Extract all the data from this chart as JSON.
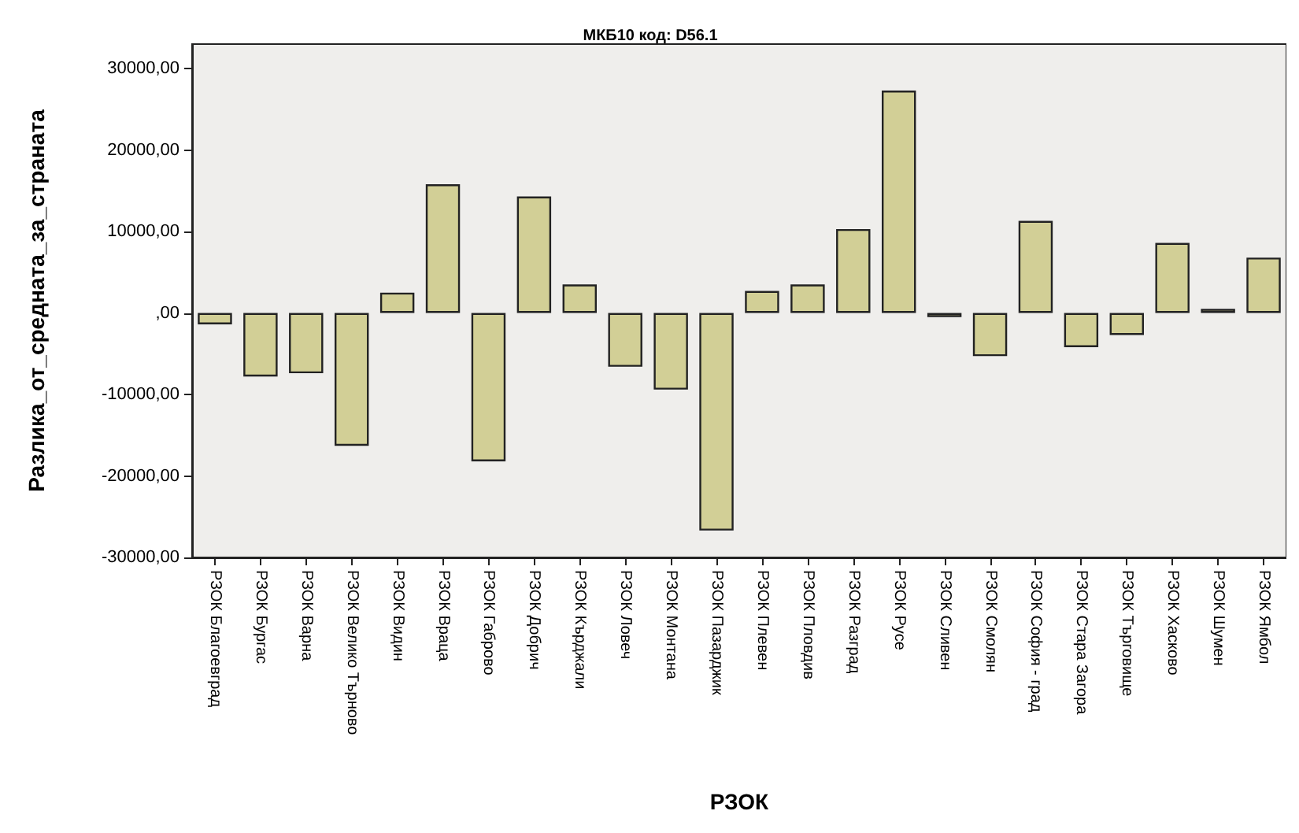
{
  "chart_data": {
    "type": "bar",
    "title": "МКБ10 код: D56.1",
    "xlabel": "РЗОК",
    "ylabel": "Разлика_от_средната_за_страната",
    "categories": [
      "РЗОК Благоевград",
      "РЗОК Бургас",
      "РЗОК Варна",
      "РЗОК Велико Търново",
      "РЗОК Видин",
      "РЗОК Враца",
      "РЗОК Габрово",
      "РЗОК Добрич",
      "РЗОК Кърджали",
      "РЗОК Ловеч",
      "РЗОК Монтана",
      "РЗОК Пазарджик",
      "РЗОК Плевен",
      "РЗОК Пловдив",
      "РЗОК Разград",
      "РЗОК Русе",
      "РЗОК Сливен",
      "РЗОК Смолян",
      "РЗОК София - град",
      "РЗОК Стара Загора",
      "РЗОК Търговище",
      "РЗОК Хасково",
      "РЗОК Шумен",
      "РЗОК Ямбол"
    ],
    "values": [
      -1400,
      -7800,
      -7400,
      -16300,
      2500,
      15800,
      -18200,
      14300,
      3500,
      -6600,
      -9400,
      -26700,
      2700,
      3500,
      10300,
      27300,
      -500,
      -5300,
      11300,
      -4200,
      -2700,
      8600,
      500,
      6800
    ],
    "color": "#d2cf96",
    "ylim": [
      -30000,
      33000
    ],
    "yticks": [
      {
        "value": -30000,
        "label": "-30000,00"
      },
      {
        "value": -20000,
        "label": "-20000,00"
      },
      {
        "value": -10000,
        "label": "-10000,00"
      },
      {
        "value": 0,
        "label": ",00"
      },
      {
        "value": 10000,
        "label": "10000,00"
      },
      {
        "value": 20000,
        "label": "20000,00"
      },
      {
        "value": 30000,
        "label": "30000,00"
      }
    ],
    "grid": false
  }
}
